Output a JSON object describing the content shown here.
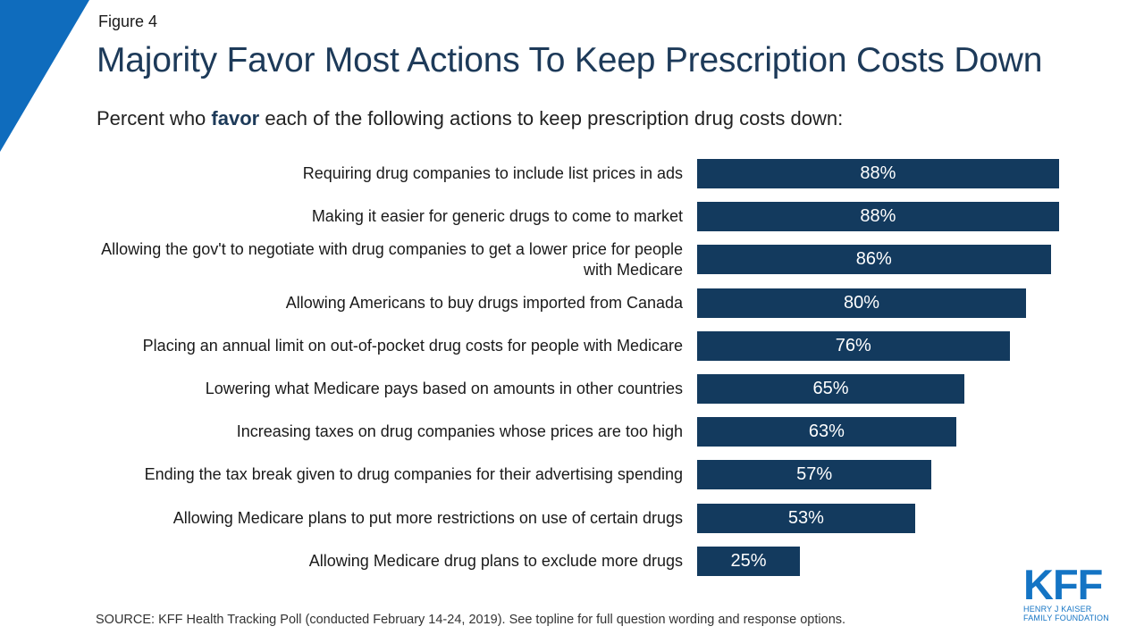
{
  "figure_label": "Figure 4",
  "title": "Majority Favor Most Actions To Keep Prescription Costs Down",
  "subtitle": {
    "before": "Percent who ",
    "emphasis": "favor",
    "after": " each of the following actions to keep prescription drug costs down:"
  },
  "chart_data": {
    "type": "bar",
    "orientation": "horizontal",
    "title": "Majority Favor Most Actions To Keep Prescription Costs Down",
    "xlabel": "",
    "ylabel": "",
    "xlim": [
      0,
      100
    ],
    "bar_color": "#133a5e",
    "categories": [
      "Requiring drug companies to include list prices in ads",
      "Making it easier for generic drugs to come to market",
      "Allowing the gov't to negotiate with drug companies to get a lower price for people with Medicare",
      "Allowing Americans to buy drugs imported from Canada",
      "Placing an annual limit on out-of-pocket drug costs for people with Medicare",
      "Lowering what Medicare pays based on amounts in other countries",
      "Increasing taxes on drug companies whose prices are too high",
      "Ending the tax break given to drug companies for their advertising spending",
      "Allowing Medicare plans to put more restrictions on use of certain drugs",
      "Allowing Medicare drug plans to exclude more drugs"
    ],
    "values": [
      88,
      88,
      86,
      80,
      76,
      65,
      63,
      57,
      53,
      25
    ],
    "value_labels": [
      "88%",
      "88%",
      "86%",
      "80%",
      "76%",
      "65%",
      "63%",
      "57%",
      "53%",
      "25%"
    ]
  },
  "source": "SOURCE: KFF Health Tracking Poll (conducted February 14-24, 2019). See topline for full question wording and response options.",
  "logo": {
    "text": "KFF",
    "line1": "HENRY J KAISER",
    "line2": "FAMILY FOUNDATION"
  },
  "colors": {
    "accent": "#0f6cbd",
    "title": "#1d3a59",
    "bar": "#133a5e"
  }
}
